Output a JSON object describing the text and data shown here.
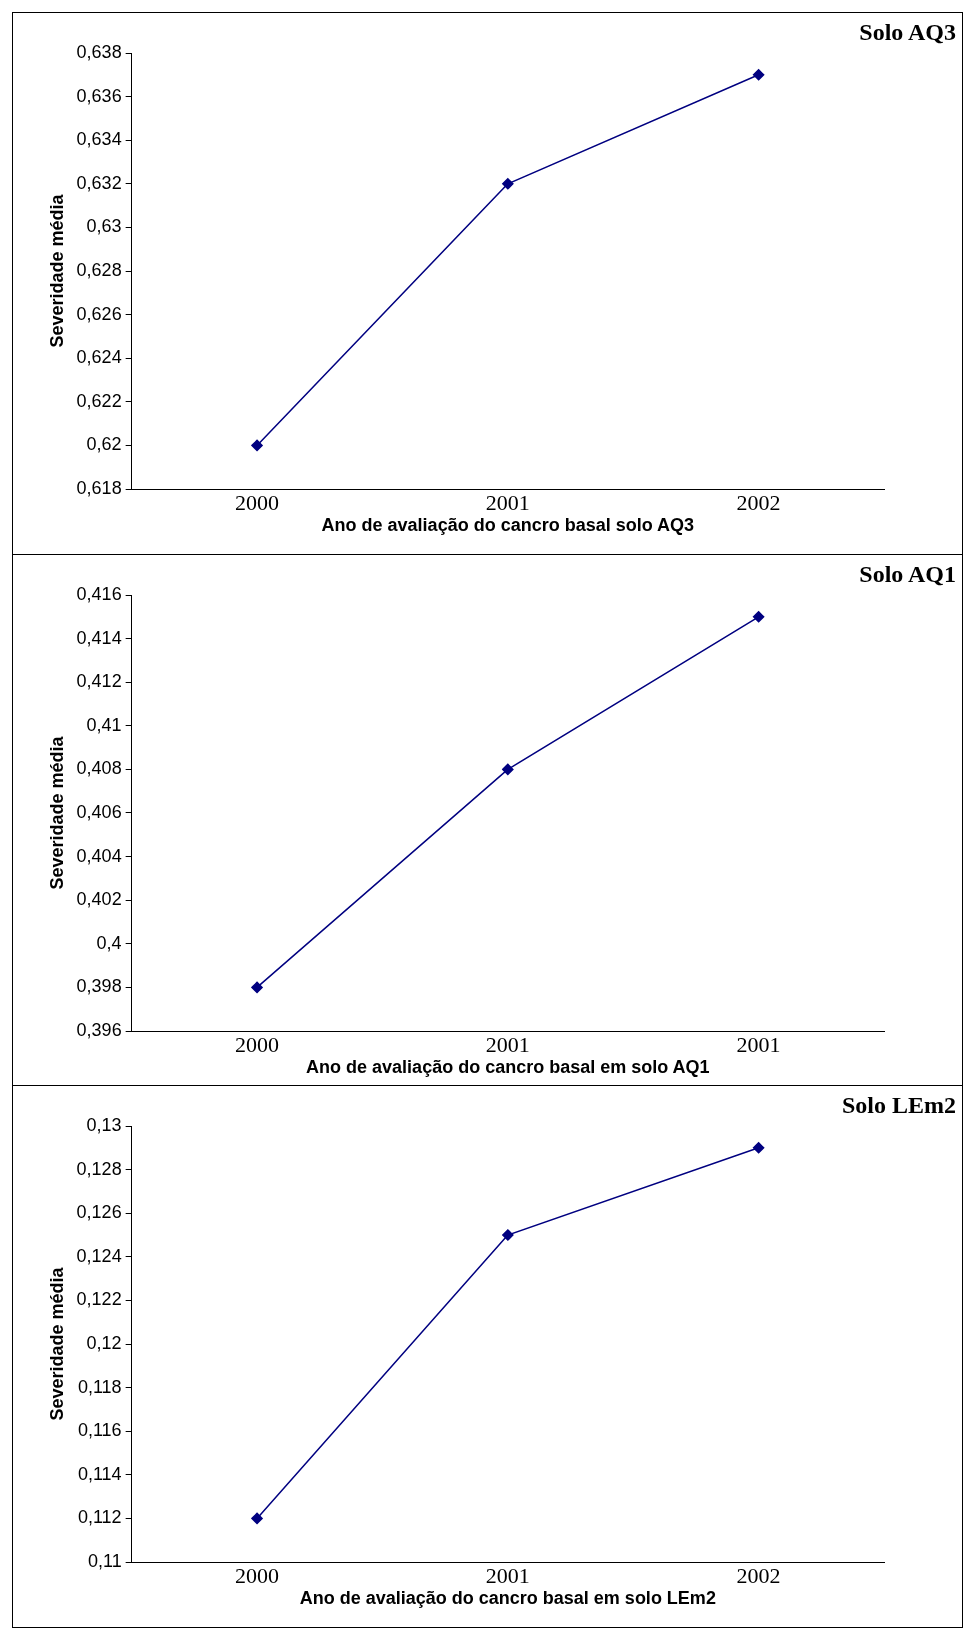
{
  "chart_data": [
    {
      "type": "line",
      "title": "Solo AQ3",
      "xlabel": "Ano de avaliação do cancro basal solo AQ3",
      "ylabel": "Severidade média",
      "categories": [
        "2000",
        "2001",
        "2002"
      ],
      "series": [
        {
          "color": "#000080",
          "values": [
            0.62,
            0.632,
            0.637
          ]
        }
      ],
      "ylim": [
        0.618,
        0.638
      ],
      "yticks": [
        {
          "value": 0.618,
          "label": "0,618"
        },
        {
          "value": 0.62,
          "label": "0,62"
        },
        {
          "value": 0.622,
          "label": "0,622"
        },
        {
          "value": 0.624,
          "label": "0,624"
        },
        {
          "value": 0.626,
          "label": "0,626"
        },
        {
          "value": 0.628,
          "label": "0,628"
        },
        {
          "value": 0.63,
          "label": "0,63"
        },
        {
          "value": 0.632,
          "label": "0,632"
        },
        {
          "value": 0.634,
          "label": "0,634"
        },
        {
          "value": 0.636,
          "label": "0,636"
        },
        {
          "value": 0.638,
          "label": "0,638"
        }
      ],
      "marker": "diamond"
    },
    {
      "type": "line",
      "title": "Solo AQ1",
      "xlabel": "Ano de avaliação do cancro basal em solo AQ1",
      "ylabel": "Severidade média",
      "categories": [
        "2000",
        "2001",
        "2001"
      ],
      "series": [
        {
          "color": "#000080",
          "values": [
            0.398,
            0.408,
            0.415
          ]
        }
      ],
      "ylim": [
        0.396,
        0.416
      ],
      "yticks": [
        {
          "value": 0.396,
          "label": "0,396"
        },
        {
          "value": 0.398,
          "label": "0,398"
        },
        {
          "value": 0.4,
          "label": "0,4"
        },
        {
          "value": 0.402,
          "label": "0,402"
        },
        {
          "value": 0.404,
          "label": "0,404"
        },
        {
          "value": 0.406,
          "label": "0,406"
        },
        {
          "value": 0.408,
          "label": "0,408"
        },
        {
          "value": 0.41,
          "label": "0,41"
        },
        {
          "value": 0.412,
          "label": "0,412"
        },
        {
          "value": 0.414,
          "label": "0,414"
        },
        {
          "value": 0.416,
          "label": "0,416"
        }
      ],
      "marker": "diamond"
    },
    {
      "type": "line",
      "title": "Solo LEm2",
      "xlabel": "Ano de avaliação do cancro basal em solo LEm2",
      "ylabel": "Severidade média",
      "categories": [
        "2000",
        "2001",
        "2002"
      ],
      "series": [
        {
          "color": "#000080",
          "values": [
            0.112,
            0.125,
            0.129
          ]
        }
      ],
      "ylim": [
        0.11,
        0.13
      ],
      "yticks": [
        {
          "value": 0.11,
          "label": "0,11"
        },
        {
          "value": 0.112,
          "label": "0,112"
        },
        {
          "value": 0.114,
          "label": "0,114"
        },
        {
          "value": 0.116,
          "label": "0,116"
        },
        {
          "value": 0.118,
          "label": "0,118"
        },
        {
          "value": 0.12,
          "label": "0,12"
        },
        {
          "value": 0.122,
          "label": "0,122"
        },
        {
          "value": 0.124,
          "label": "0,124"
        },
        {
          "value": 0.126,
          "label": "0,126"
        },
        {
          "value": 0.128,
          "label": "0,128"
        },
        {
          "value": 0.13,
          "label": "0,13"
        }
      ],
      "marker": "diamond"
    }
  ]
}
